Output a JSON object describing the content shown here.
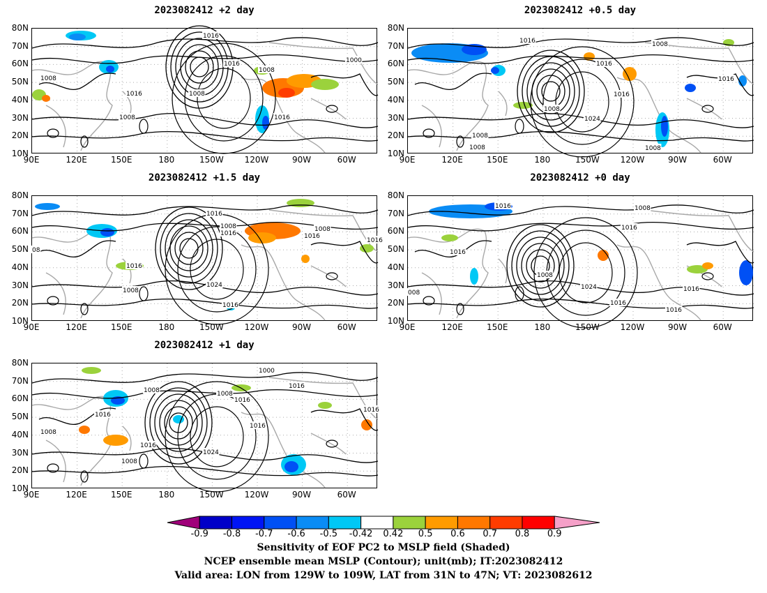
{
  "panels": [
    {
      "title": "2023082412 +2 day",
      "labels": [
        "1016",
        "1016",
        "1008",
        "1000",
        "1008",
        "1016",
        "1008",
        "1008",
        "1016"
      ]
    },
    {
      "title": "2023082412 +0.5 day",
      "labels": [
        "1016",
        "1008",
        "1016",
        "1016",
        "1008",
        "1016",
        "1024",
        "1008",
        "1008",
        "1008"
      ]
    },
    {
      "title": "2023082412 +1.5 day",
      "labels": [
        "1016",
        "1008",
        "1016",
        "1008",
        "1016",
        "1016",
        "08",
        "1016",
        "1008",
        "1024",
        "1016"
      ]
    },
    {
      "title": "2023082412 +0 day",
      "labels": [
        "1016",
        "1008",
        "1016",
        "1016",
        "1008",
        "1024",
        "1016",
        "1016",
        "008",
        "1016"
      ]
    },
    {
      "title": "2023082412 +1 day",
      "labels": [
        "1000",
        "1016",
        "1008",
        "1016",
        "1008",
        "1016",
        "1016",
        "1008",
        "1016",
        "1024",
        "1016",
        "1008"
      ]
    }
  ],
  "lat_labels": [
    "80N",
    "70N",
    "60N",
    "50N",
    "40N",
    "30N",
    "20N",
    "10N"
  ],
  "lon_labels": [
    "90E",
    "120E",
    "150E",
    "180",
    "150W",
    "120W",
    "90W",
    "60W"
  ],
  "colorbar": {
    "ticks": [
      "-0.9",
      "-0.8",
      "-0.7",
      "-0.6",
      "-0.5",
      "-0.42",
      "0.42",
      "0.5",
      "0.6",
      "0.7",
      "0.8",
      "0.9"
    ],
    "colors": [
      "#a0007a",
      "#0000c8",
      "#0014f5",
      "#0050f5",
      "#0a8cf5",
      "#00c8f5",
      "#ffffff",
      "#9bd23c",
      "#ff9b00",
      "#ff7800",
      "#ff3c00",
      "#ff0000",
      "#f5a0c8"
    ]
  },
  "caption": {
    "line1": "Sensitivity of EOF PC2 to MSLP field (Shaded)",
    "line2": "NCEP ensemble mean MSLP (Contour); unit(mb); IT:2023082412",
    "line3": "Valid area: LON from 129W to 109W, LAT from 31N to 47N; VT: 2023082612"
  }
}
